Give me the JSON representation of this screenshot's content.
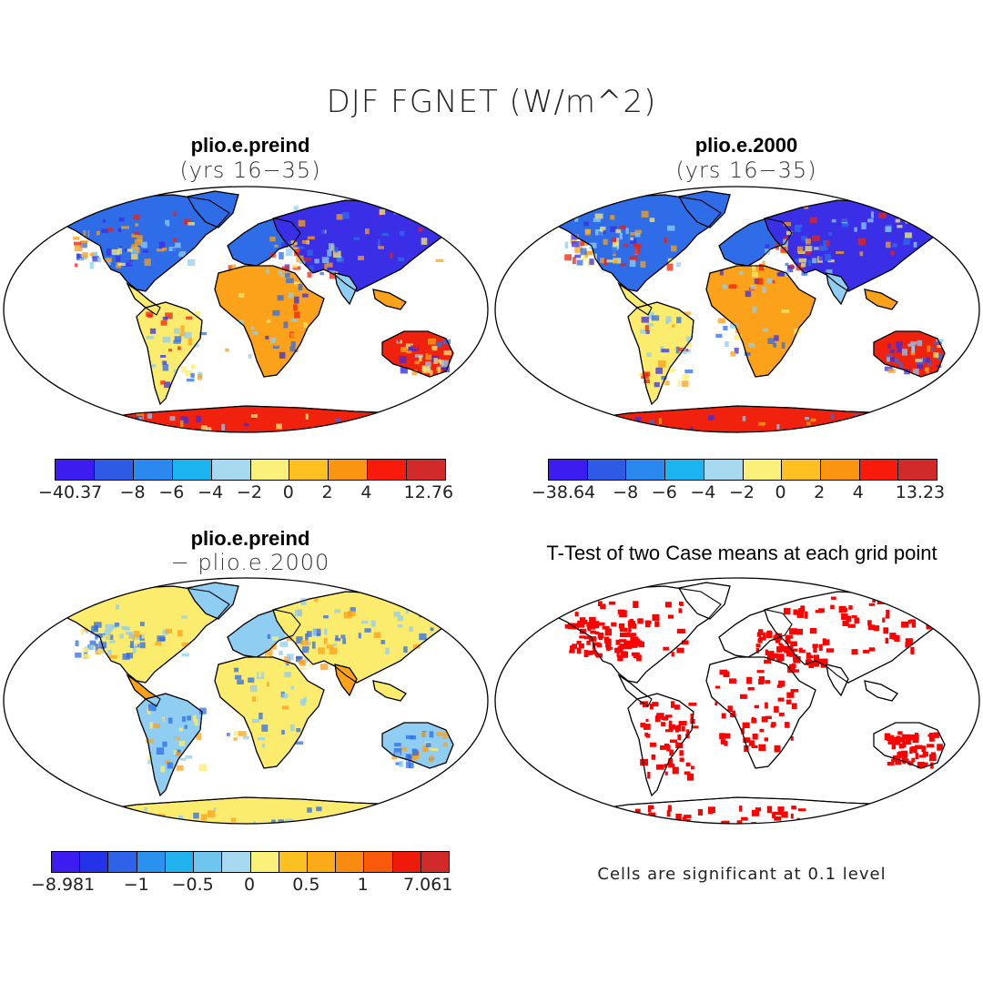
{
  "figure": {
    "title": "DJF FGNET (W/m^2)"
  },
  "panels": {
    "top_left": {
      "title": "plio.e.preind",
      "subtitle": "(yrs 16−35)",
      "colorbar": {
        "colors": [
          "#3c1cf0",
          "#2e5ae6",
          "#2a88ee",
          "#1cb4f0",
          "#a6d8f0",
          "#fbf07a",
          "#fcc020",
          "#fb9410",
          "#f81a0a",
          "#d22a2a"
        ],
        "labels": [
          "−40.37",
          "−8",
          "−6",
          "−4",
          "−2",
          "0",
          "2",
          "4",
          "12.76"
        ]
      }
    },
    "top_right": {
      "title": "plio.e.2000",
      "subtitle": "(yrs 16−35)",
      "colorbar": {
        "colors": [
          "#3c1cf0",
          "#2e5ae6",
          "#2a88ee",
          "#1cb4f0",
          "#a6d8f0",
          "#fbf07a",
          "#fcc020",
          "#fb9410",
          "#f81a0a",
          "#d22a2a"
        ],
        "labels": [
          "−38.64",
          "−8",
          "−6",
          "−4",
          "−2",
          "0",
          "2",
          "4",
          "13.23"
        ]
      }
    },
    "bottom_left": {
      "title": "plio.e.preind",
      "subtitle": "− plio.e.2000",
      "colorbar": {
        "colors": [
          "#3c1cf0",
          "#2432e8",
          "#2e62e8",
          "#2a92ee",
          "#22b2f0",
          "#6ec6ee",
          "#a6d8f0",
          "#fbf07a",
          "#fcc020",
          "#fcaa18",
          "#fb8a10",
          "#fb5a0a",
          "#f01a0a",
          "#d22a2a"
        ],
        "labels": [
          "−8.981",
          "−1",
          "−0.5",
          "0",
          "0.5",
          "1",
          "7.061"
        ]
      }
    },
    "bottom_right": {
      "title": "T-Test of two Case means at each grid point",
      "note": "Cells are significant at 0.1 level"
    }
  },
  "map_palette": {
    "cold": "#2f6ce8",
    "deep_cold": "#3a2ee6",
    "light_blue": "#8fcdf2",
    "yellow": "#fcec6e",
    "orange": "#fba21a",
    "red": "#f0220e",
    "significant": "#ff0000"
  }
}
